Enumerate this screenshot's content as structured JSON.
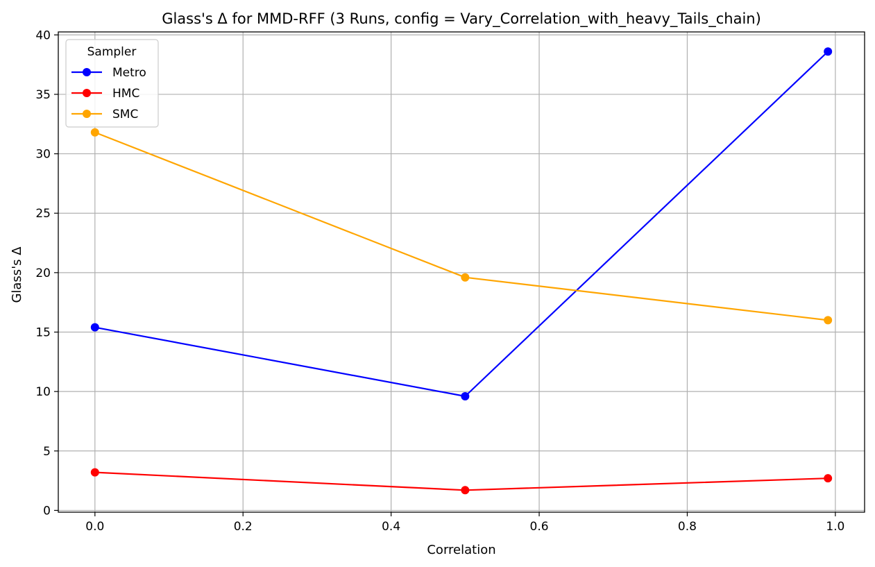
{
  "chart_data": {
    "type": "line",
    "title": "Glass's Δ for MMD-RFF (3 Runs, config = Vary_Correlation_with_heavy_Tails_chain)",
    "xlabel": "Correlation",
    "ylabel": "Glass's Δ",
    "xlim": [
      -0.0495,
      1.0395
    ],
    "ylim": [
      -0.15,
      40.25
    ],
    "x_ticks": [
      0.0,
      0.2,
      0.4,
      0.6,
      0.8,
      1.0
    ],
    "x_tick_labels": [
      "0.0",
      "0.2",
      "0.4",
      "0.6",
      "0.8",
      "1.0"
    ],
    "y_ticks": [
      0,
      5,
      10,
      15,
      20,
      25,
      30,
      35,
      40
    ],
    "y_tick_labels": [
      "0",
      "5",
      "10",
      "15",
      "20",
      "25",
      "30",
      "35",
      "40"
    ],
    "grid": true,
    "legend": {
      "title": "Sampler",
      "placement": "top-left"
    },
    "x": [
      0.0,
      0.5,
      0.99
    ],
    "series": [
      {
        "name": "Metro",
        "color": "#0000ff",
        "values": [
          15.4,
          9.6,
          38.6
        ]
      },
      {
        "name": "HMC",
        "color": "#ff0000",
        "values": [
          3.2,
          1.7,
          2.7
        ]
      },
      {
        "name": "SMC",
        "color": "#ffa500",
        "values": [
          31.8,
          19.6,
          16.0
        ]
      }
    ]
  }
}
